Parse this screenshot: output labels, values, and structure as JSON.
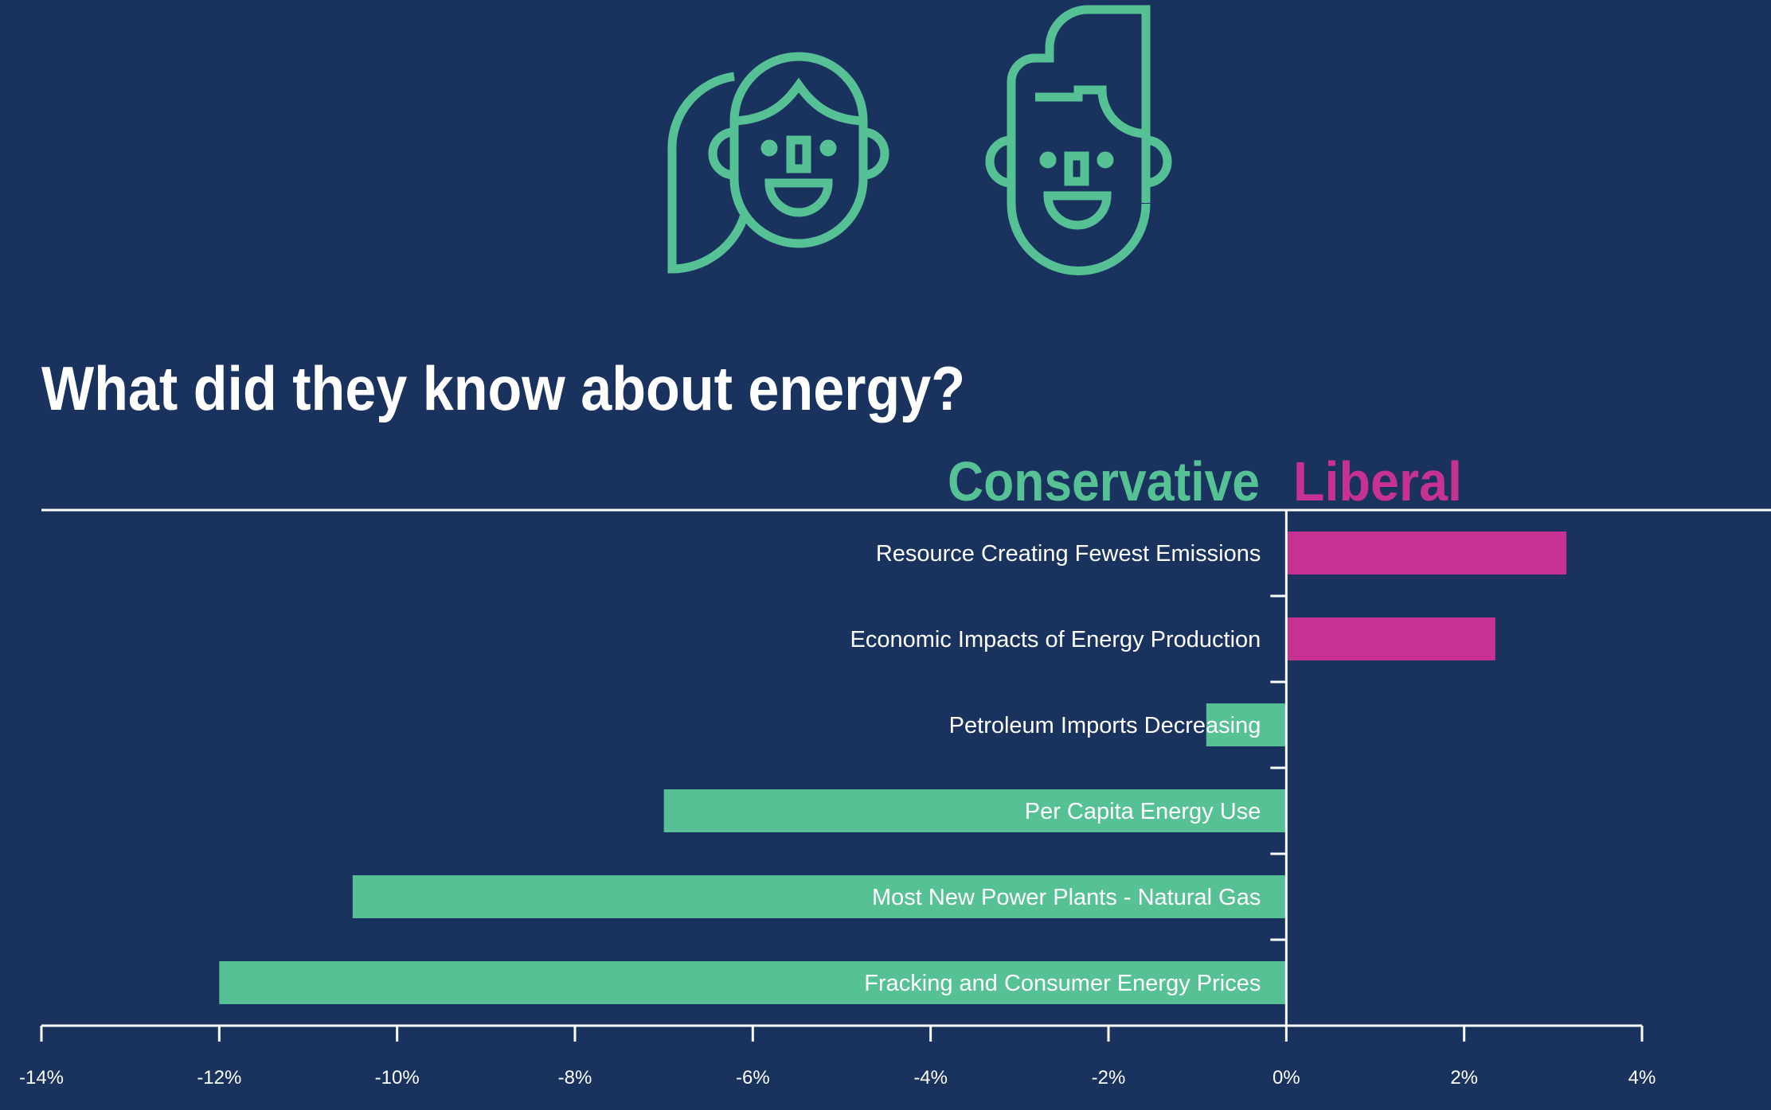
{
  "title": "What did they know about energy?",
  "legend": {
    "left_label": "Conservative",
    "right_label": "Liberal"
  },
  "colors": {
    "background": "#1a335e",
    "conservative": "#57c196",
    "liberal": "#c73192",
    "text": "#ffffff"
  },
  "icons": [
    {
      "name": "woman-face-icon"
    },
    {
      "name": "man-face-icon"
    }
  ],
  "chart_data": {
    "type": "bar",
    "orientation": "horizontal",
    "title": "What did they know about energy?",
    "xlabel": "",
    "ylabel": "",
    "categories": [
      "Resource Creating Fewest Emissions",
      "Economic Impacts of Energy Production",
      "Petroleum Imports Decreasing",
      "Per Capita Energy Use",
      "Most New Power Plants - Natural Gas",
      "Fracking and Consumer Energy Prices"
    ],
    "values": [
      3.15,
      2.35,
      -0.9,
      -7.0,
      -10.5,
      -12.0
    ],
    "xlim": [
      -14,
      4
    ],
    "xticks": [
      -14,
      -12,
      -10,
      -8,
      -6,
      -4,
      -2,
      0,
      2,
      4
    ],
    "tick_labels": [
      "-14%",
      "-12%",
      "-10%",
      "-8%",
      "-6%",
      "-4%",
      "-2%",
      "0%",
      "2%",
      "4%"
    ],
    "grid": false,
    "legend_position": "top-center"
  }
}
